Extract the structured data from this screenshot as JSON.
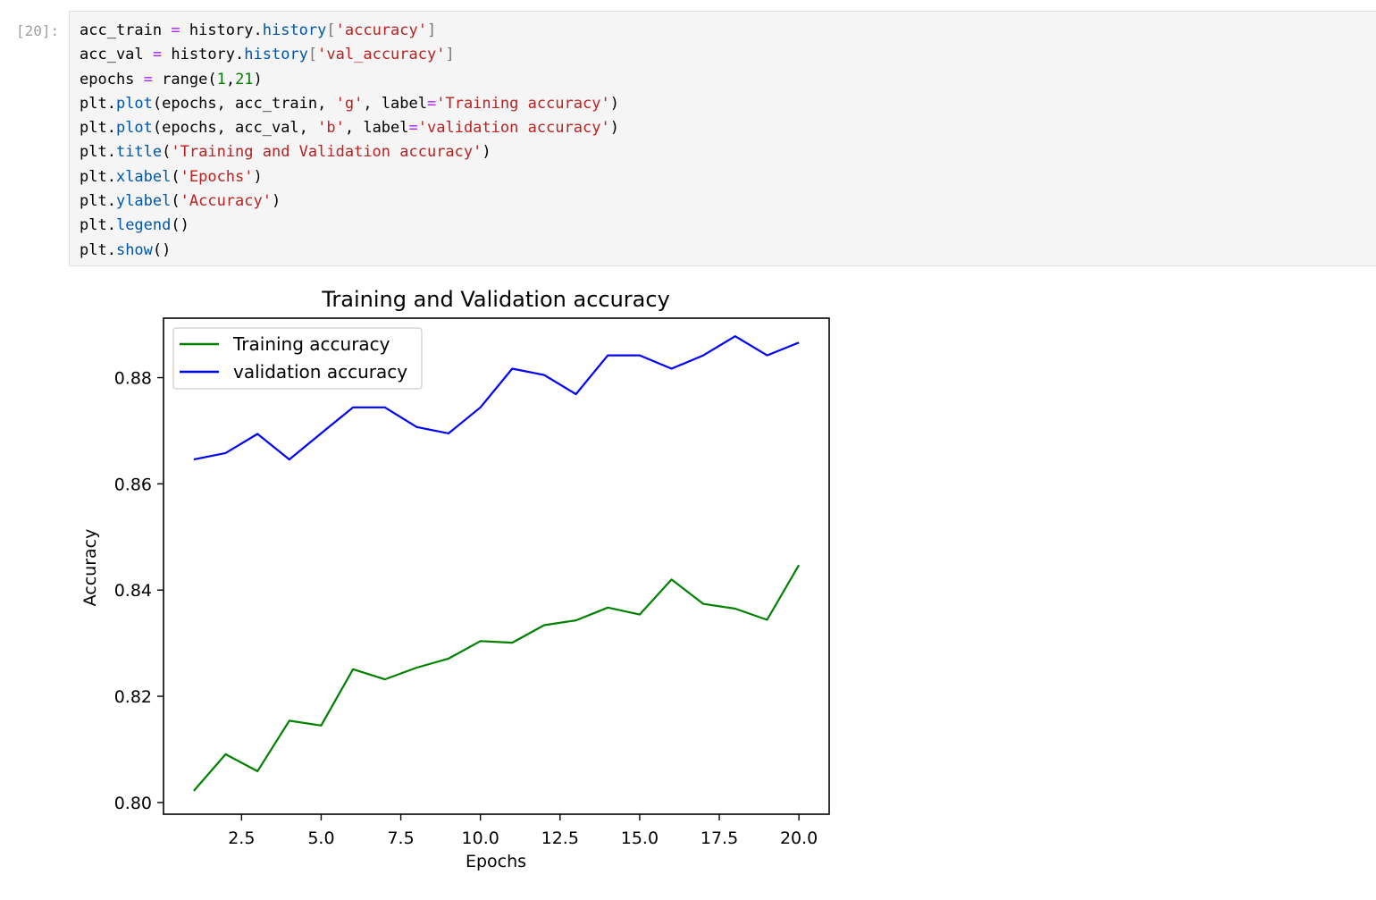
{
  "cell": {
    "prompt": "[20]:",
    "lines": [
      [
        {
          "t": "acc_train ",
          "c": ""
        },
        {
          "t": "=",
          "c": "op"
        },
        {
          "t": " history.",
          "c": ""
        },
        {
          "t": "history",
          "c": "attr"
        },
        {
          "t": "[",
          "c": "dim"
        },
        {
          "t": "'accuracy'",
          "c": "str"
        },
        {
          "t": "]",
          "c": "dim"
        }
      ],
      [
        {
          "t": "acc_val ",
          "c": ""
        },
        {
          "t": "=",
          "c": "op"
        },
        {
          "t": " history.",
          "c": ""
        },
        {
          "t": "history",
          "c": "attr"
        },
        {
          "t": "[",
          "c": "dim"
        },
        {
          "t": "'val_accuracy'",
          "c": "str"
        },
        {
          "t": "]",
          "c": "dim"
        }
      ],
      [
        {
          "t": "epochs ",
          "c": ""
        },
        {
          "t": "=",
          "c": "op"
        },
        {
          "t": " range(",
          "c": ""
        },
        {
          "t": "1",
          "c": "num"
        },
        {
          "t": ",",
          "c": ""
        },
        {
          "t": "21",
          "c": "num"
        },
        {
          "t": ")",
          "c": ""
        }
      ],
      [
        {
          "t": "plt.",
          "c": ""
        },
        {
          "t": "plot",
          "c": "attr"
        },
        {
          "t": "(epochs, acc_train, ",
          "c": ""
        },
        {
          "t": "'g'",
          "c": "str"
        },
        {
          "t": ", label",
          "c": ""
        },
        {
          "t": "=",
          "c": "op"
        },
        {
          "t": "'Training accuracy'",
          "c": "str"
        },
        {
          "t": ")",
          "c": ""
        }
      ],
      [
        {
          "t": "plt.",
          "c": ""
        },
        {
          "t": "plot",
          "c": "attr"
        },
        {
          "t": "(epochs, acc_val, ",
          "c": ""
        },
        {
          "t": "'b'",
          "c": "str"
        },
        {
          "t": ", label",
          "c": ""
        },
        {
          "t": "=",
          "c": "op"
        },
        {
          "t": "'validation accuracy'",
          "c": "str"
        },
        {
          "t": ")",
          "c": ""
        }
      ],
      [
        {
          "t": "plt.",
          "c": ""
        },
        {
          "t": "title",
          "c": "attr"
        },
        {
          "t": "(",
          "c": ""
        },
        {
          "t": "'Training and Validation accuracy'",
          "c": "str"
        },
        {
          "t": ")",
          "c": ""
        }
      ],
      [
        {
          "t": "plt.",
          "c": ""
        },
        {
          "t": "xlabel",
          "c": "attr"
        },
        {
          "t": "(",
          "c": ""
        },
        {
          "t": "'Epochs'",
          "c": "str"
        },
        {
          "t": ")",
          "c": ""
        }
      ],
      [
        {
          "t": "plt.",
          "c": ""
        },
        {
          "t": "ylabel",
          "c": "attr"
        },
        {
          "t": "(",
          "c": ""
        },
        {
          "t": "'Accuracy'",
          "c": "str"
        },
        {
          "t": ")",
          "c": ""
        }
      ],
      [
        {
          "t": "plt.",
          "c": ""
        },
        {
          "t": "legend",
          "c": "attr"
        },
        {
          "t": "()",
          "c": ""
        }
      ],
      [
        {
          "t": "plt.",
          "c": ""
        },
        {
          "t": "show",
          "c": "attr"
        },
        {
          "t": "()",
          "c": ""
        }
      ]
    ]
  },
  "chart_data": {
    "type": "line",
    "title": "Training and Validation accuracy",
    "xlabel": "Epochs",
    "ylabel": "Accuracy",
    "xlim": [
      0.05,
      20.95
    ],
    "ylim": [
      0.7978,
      0.8912
    ],
    "xticks": [
      "2.5",
      "5.0",
      "7.5",
      "10.0",
      "12.5",
      "15.0",
      "17.5",
      "20.0"
    ],
    "yticks": [
      "0.80",
      "0.82",
      "0.84",
      "0.86",
      "0.88"
    ],
    "legend": "upper-left",
    "grid": false,
    "x": [
      1,
      2,
      3,
      4,
      5,
      6,
      7,
      8,
      9,
      10,
      11,
      12,
      13,
      14,
      15,
      16,
      17,
      18,
      19,
      20
    ],
    "series": [
      {
        "name": "Training accuracy",
        "color": "#008000",
        "values": [
          0.8022,
          0.8091,
          0.8059,
          0.8154,
          0.8145,
          0.8251,
          0.8232,
          0.8254,
          0.8271,
          0.8304,
          0.8301,
          0.8334,
          0.8343,
          0.8367,
          0.8354,
          0.842,
          0.8374,
          0.8365,
          0.8344,
          0.8447
        ]
      },
      {
        "name": "validation accuracy",
        "color": "#0000ff",
        "values": [
          0.8646,
          0.8658,
          0.8694,
          0.8646,
          0.8695,
          0.8744,
          0.8744,
          0.8707,
          0.8695,
          0.8744,
          0.8817,
          0.8805,
          0.8769,
          0.8842,
          0.8842,
          0.8817,
          0.8842,
          0.8878,
          0.8842,
          0.8866
        ]
      }
    ]
  }
}
